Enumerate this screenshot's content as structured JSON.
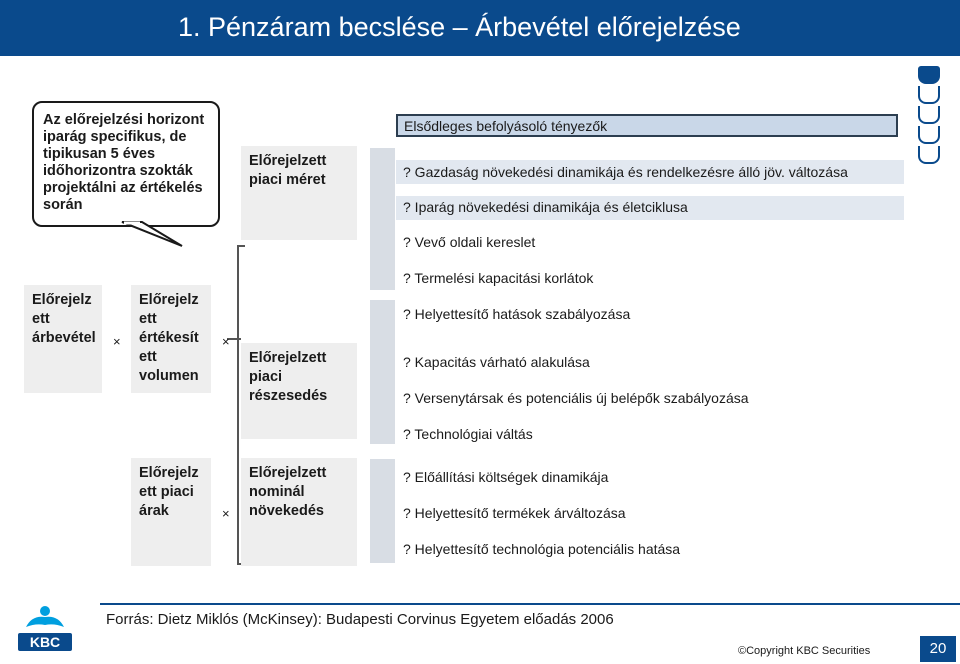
{
  "slide": {
    "title": "1. Pénzáram becslése – Árbevétel előrejelzése",
    "page_number": "20"
  },
  "callout": {
    "text": "Az előrejelzési horizont iparág specifikus, de tipikusan 5 éves időhorizontra szokták projektálni az értékelés során"
  },
  "tree": {
    "revenue": "Előrejelz ett árbevétel",
    "volume": "Előrejelz ett értékesít ett volumen",
    "prices": "Előrejelz ett piaci árak",
    "market_size": "Előrejelzett piaci méret",
    "market_share": "Előrejelzett piaci részesedés",
    "nominal_growth": "Előrejelzett nominál növekedés",
    "operator": "×"
  },
  "drivers": {
    "header": "Elsődleges befolyásoló tényezők",
    "group1": [
      "? Gazdaság növekedési dinamikája és rendelkezésre álló jöv. változása",
      "? Iparág növekedési dinamikája és életciklusa",
      "? Vevő oldali kereslet",
      "? Termelési kapacitási korlátok"
    ],
    "group2": [
      "? Helyettesítő hatások szabályozása",
      "? Kapacitás várható alakulása",
      "? Versenytársak és potenciális új belépők szabályozása",
      "? Technológiai váltás"
    ],
    "group3": [
      "? Előállítási költségek dinamikája",
      "? Helyettesítő termékek árváltozása",
      "? Helyettesítő technológia potenciális hatása"
    ]
  },
  "footer": {
    "source": "Forrás: Dietz Miklós (McKinsey): Budapesti Corvinus Egyetem előadás 2006",
    "copyright": "©Copyright KBC Securities",
    "logo_text": "KBC"
  },
  "colors": {
    "brand_blue": "#0a4a8c",
    "box_gray": "#eeeeee",
    "header_fill": "#c9d7e8"
  }
}
